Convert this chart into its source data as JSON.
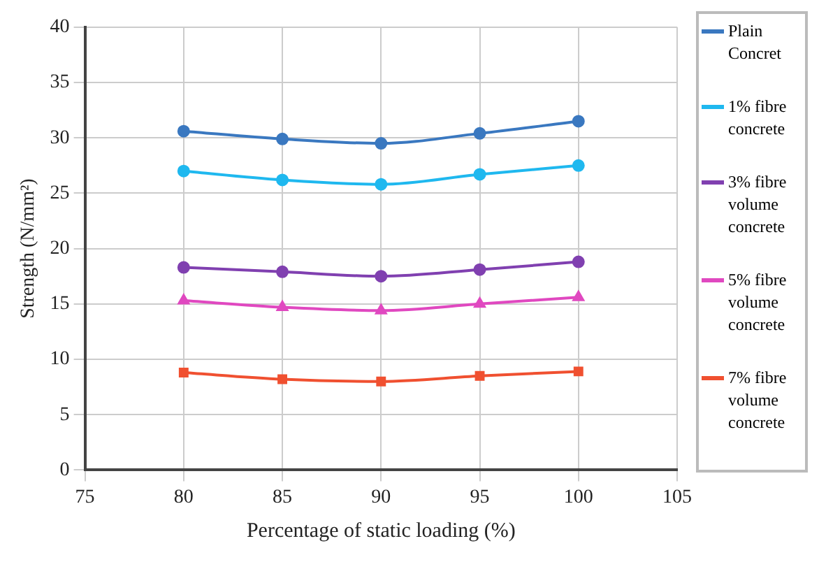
{
  "chart_data": {
    "type": "line",
    "xlabel": "Percentage of static loading (%)",
    "ylabel": "Strength (N/mm²)",
    "x": [
      80,
      85,
      90,
      95,
      100
    ],
    "xlim": [
      75,
      105
    ],
    "xticks": [
      75,
      80,
      85,
      90,
      95,
      100,
      105
    ],
    "ylim": [
      0,
      40
    ],
    "yticks": [
      0,
      5,
      10,
      15,
      20,
      25,
      30,
      35,
      40
    ],
    "grid": true,
    "legend": "right",
    "series": [
      {
        "name": "Plain Concret",
        "color": "#3a78c0",
        "marker": "circle",
        "values": [
          30.6,
          29.9,
          29.5,
          30.4,
          31.5
        ]
      },
      {
        "name": "1% fibre concrete",
        "color": "#1fb8ef",
        "marker": "circle",
        "values": [
          27.0,
          26.2,
          25.8,
          26.7,
          27.5
        ]
      },
      {
        "name": "3% fibre volume concrete",
        "color": "#8040b0",
        "marker": "circle",
        "values": [
          18.3,
          17.9,
          17.5,
          18.1,
          18.8
        ]
      },
      {
        "name": "5% fibre volume concrete",
        "color": "#e048c0",
        "marker": "triangle",
        "values": [
          15.3,
          14.7,
          14.4,
          15.0,
          15.6
        ]
      },
      {
        "name": "7% fibre volume concrete",
        "color": "#f05030",
        "marker": "square",
        "values": [
          8.8,
          8.2,
          8.0,
          8.5,
          8.9
        ]
      }
    ]
  }
}
